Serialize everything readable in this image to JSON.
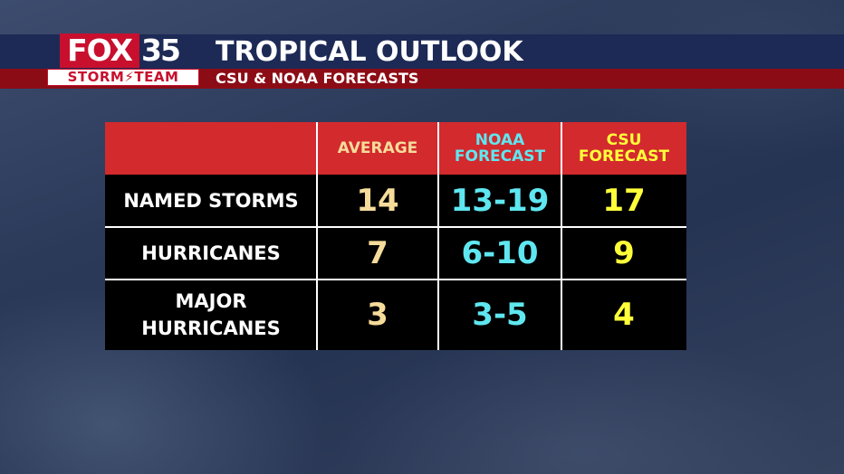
{
  "logo": {
    "brand": "FOX",
    "channel": "35",
    "team": "STORM⚡TEAM"
  },
  "header": {
    "title": "TROPICAL OUTLOOK",
    "subtitle": "CSU & NOAA FORECASTS"
  },
  "table": {
    "columns": [
      "AVERAGE",
      "NOAA FORECAST",
      "CSU FORECAST"
    ],
    "rows": [
      {
        "label": "NAMED STORMS",
        "average": "14",
        "noaa": "13-19",
        "csu": "17"
      },
      {
        "label": "HURRICANES",
        "average": "7",
        "noaa": "6-10",
        "csu": "9"
      },
      {
        "label": "MAJOR HURRICANES",
        "average": "3",
        "noaa": "3-5",
        "csu": "4"
      }
    ]
  },
  "colors": {
    "header_red": "#d32a2e",
    "average": "#f6dc9a",
    "noaa": "#5fe7f0",
    "csu": "#ffff3a"
  }
}
